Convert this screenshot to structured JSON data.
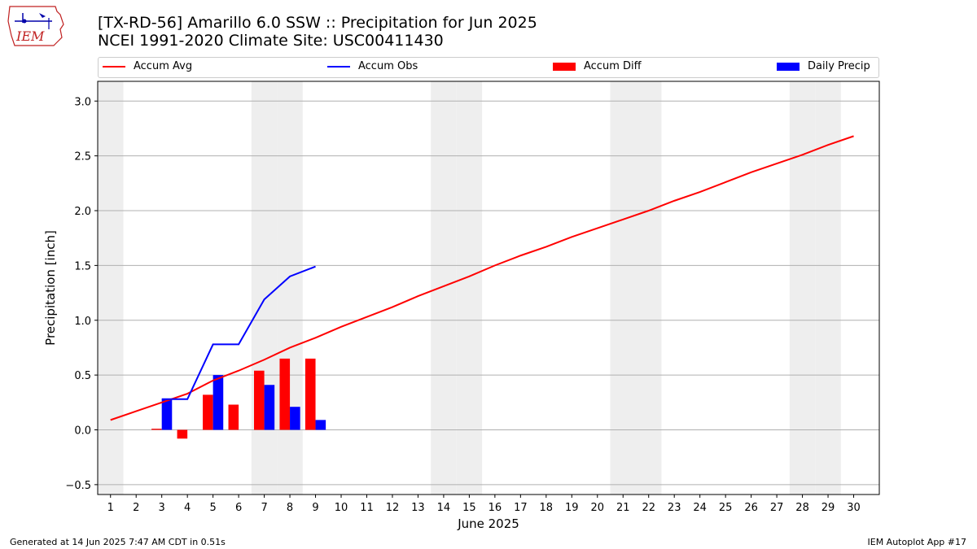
{
  "title_line1": "[TX-RD-56] Amarillo 6.0 SSW :: Precipitation for Jun 2025",
  "title_line2": "NCEI 1991-2020 Climate Site: USC00411430",
  "logo_text": "IEM",
  "footer_left": "Generated at 14 Jun 2025 7:47 AM CDT in 0.51s",
  "footer_right": "IEM Autoplot App #17",
  "colors": {
    "avg": "#ff0000",
    "obs": "#0000ff",
    "diff": "#ff0000",
    "daily": "#0000ff",
    "weekend": "#eeeeee",
    "grid": "#b0b0b0"
  },
  "legend": [
    {
      "label": "Accum Avg",
      "kind": "line",
      "color": "#ff0000"
    },
    {
      "label": "Accum Obs",
      "kind": "line",
      "color": "#0000ff"
    },
    {
      "label": "Accum Diff",
      "kind": "rect",
      "color": "#ff0000"
    },
    {
      "label": "Daily Precip",
      "kind": "rect",
      "color": "#0000ff"
    }
  ],
  "chart_data": {
    "type": "bar",
    "xlabel": "June 2025",
    "ylabel": "Precipitation [inch]",
    "xlim": [
      0.5,
      31.0
    ],
    "ylim": [
      -0.59,
      3.18
    ],
    "yticks": [
      "−0.5",
      "0.0",
      "0.5",
      "1.0",
      "1.5",
      "2.0",
      "2.5",
      "3.0"
    ],
    "ytick_values": [
      -0.5,
      0.0,
      0.5,
      1.0,
      1.5,
      2.0,
      2.5,
      3.0
    ],
    "days": [
      "1",
      "2",
      "3",
      "4",
      "5",
      "6",
      "7",
      "8",
      "9",
      "10",
      "11",
      "12",
      "13",
      "14",
      "15",
      "16",
      "17",
      "18",
      "19",
      "20",
      "21",
      "22",
      "23",
      "24",
      "25",
      "26",
      "27",
      "28",
      "29",
      "30"
    ],
    "weekend_days": [
      1,
      7,
      8,
      14,
      15,
      21,
      22,
      28,
      29
    ],
    "grid": "horizontal",
    "series": [
      {
        "name": "Accum Avg",
        "type": "line",
        "x": [
          1,
          2,
          3,
          4,
          5,
          6,
          7,
          8,
          9,
          10,
          11,
          12,
          13,
          14,
          15,
          16,
          17,
          18,
          19,
          20,
          21,
          22,
          23,
          24,
          25,
          26,
          27,
          28,
          29,
          30
        ],
        "values": [
          0.09,
          0.17,
          0.25,
          0.33,
          0.45,
          0.54,
          0.64,
          0.75,
          0.84,
          0.94,
          1.03,
          1.12,
          1.22,
          1.31,
          1.4,
          1.5,
          1.59,
          1.67,
          1.76,
          1.84,
          1.92,
          2.0,
          2.09,
          2.17,
          2.26,
          2.35,
          2.43,
          2.51,
          2.6,
          2.68
        ]
      },
      {
        "name": "Accum Obs",
        "type": "line",
        "x": [
          3,
          4,
          5,
          6,
          7,
          8,
          9
        ],
        "values": [
          0.28,
          0.28,
          0.78,
          0.78,
          1.19,
          1.4,
          1.49
        ]
      },
      {
        "name": "Accum Diff",
        "type": "bar",
        "x": [
          3,
          4,
          5,
          6,
          7,
          8,
          9
        ],
        "values": [
          0.01,
          -0.08,
          0.32,
          0.23,
          0.54,
          0.65,
          0.65
        ]
      },
      {
        "name": "Daily Precip",
        "type": "bar",
        "x": [
          3,
          4,
          5,
          6,
          7,
          8,
          9
        ],
        "values": [
          0.28,
          0.0,
          0.5,
          0.0,
          0.41,
          0.21,
          0.09
        ]
      }
    ]
  }
}
